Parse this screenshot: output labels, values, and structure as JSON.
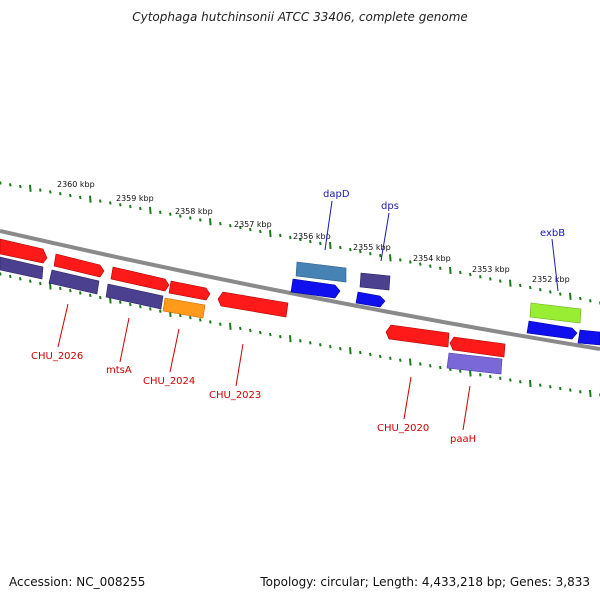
{
  "title": "Cytophaga hutchinsonii ATCC 33406, complete genome",
  "footer": {
    "accession": "Accession: NC_008255",
    "topology": "Topology: circular; Length: 4,433,218 bp; Genes: 3,833"
  },
  "colors": {
    "backbone": "#8a8a8a",
    "tick": "#1a7a1a",
    "red_gene": "#ff1a1a",
    "navy_gene": "#4b3f8f",
    "blue_gene": "#1010ee",
    "steel_gene": "#4682b4",
    "orange_gene": "#ff9a1a",
    "lime_gene": "#99ee33",
    "purple_gene": "#7b68d8",
    "label_red": "#cc0000",
    "label_blue": "#1a1aaa"
  },
  "kbp_scale": [
    "2360 kbp",
    "2359 kbp",
    "2358 kbp",
    "2357 kbp",
    "2356 kbp",
    "2355 kbp",
    "2354 kbp",
    "2353 kbp",
    "2352 kbp"
  ],
  "gene_labels": {
    "forward": [
      "dapD",
      "dps",
      "exbB"
    ],
    "reverse": [
      "CHU_2026",
      "mtsA",
      "CHU_2024",
      "CHU_2023",
      "CHU_2020",
      "paaH"
    ]
  }
}
